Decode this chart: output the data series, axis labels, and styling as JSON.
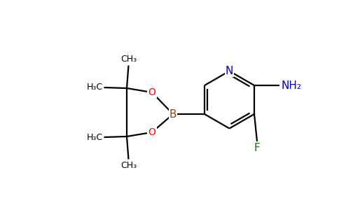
{
  "background_color": "#ffffff",
  "bond_color": "#000000",
  "N_color": "#0000cd",
  "O_color": "#ff0000",
  "B_color": "#8b4513",
  "F_color": "#008000",
  "NH2_color": "#0000cd",
  "font_size": 10,
  "small_font_size": 9,
  "figsize": [
    4.84,
    3.0
  ],
  "dpi": 100,
  "xlim": [
    0,
    9.68
  ],
  "ylim": [
    0,
    6.0
  ]
}
